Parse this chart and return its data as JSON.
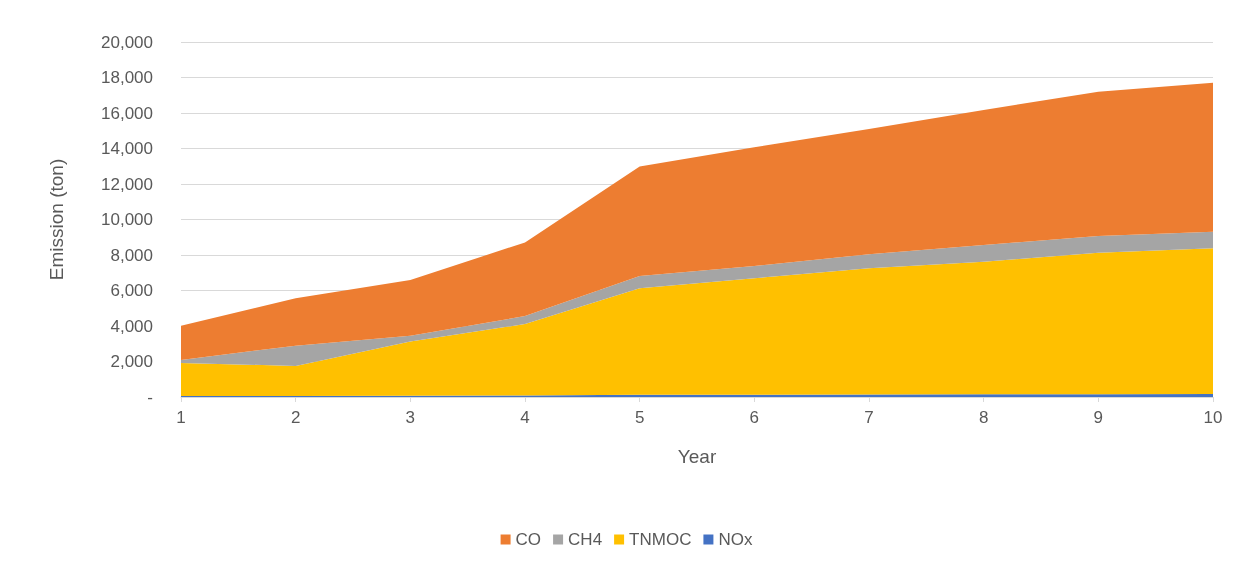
{
  "chart_data": {
    "type": "area",
    "stacked": true,
    "xlabel": "Year",
    "ylabel": "Emission (ton)",
    "categories": [
      "1",
      "2",
      "3",
      "4",
      "5",
      "6",
      "7",
      "8",
      "9",
      "10"
    ],
    "series": [
      {
        "name": "NOx",
        "color": "#4472c4",
        "values": [
          50,
          60,
          70,
          80,
          120,
          130,
          140,
          150,
          160,
          170
        ]
      },
      {
        "name": "TNMOC",
        "color": "#ffc000",
        "values": [
          1870,
          1690,
          3050,
          4030,
          6000,
          6560,
          7110,
          7470,
          7970,
          8210
        ]
      },
      {
        "name": "CH4",
        "color": "#a5a5a5",
        "values": [
          170,
          1140,
          330,
          450,
          700,
          690,
          790,
          940,
          940,
          930
        ]
      },
      {
        "name": "CO",
        "color": "#ed7d31",
        "values": [
          1920,
          2670,
          3140,
          4150,
          6160,
          6690,
          7060,
          7610,
          8130,
          8400
        ]
      }
    ],
    "ylim": [
      0,
      20000
    ],
    "yticks": [
      {
        "value": 0,
        "label": "-"
      },
      {
        "value": 2000,
        "label": "2,000"
      },
      {
        "value": 4000,
        "label": "4,000"
      },
      {
        "value": 6000,
        "label": "6,000"
      },
      {
        "value": 8000,
        "label": "8,000"
      },
      {
        "value": 10000,
        "label": "10,000"
      },
      {
        "value": 12000,
        "label": "12,000"
      },
      {
        "value": 14000,
        "label": "14,000"
      },
      {
        "value": 16000,
        "label": "16,000"
      },
      {
        "value": 18000,
        "label": "18,000"
      },
      {
        "value": 20000,
        "label": "20,000"
      }
    ],
    "grid": "y",
    "legend": "bottom"
  }
}
